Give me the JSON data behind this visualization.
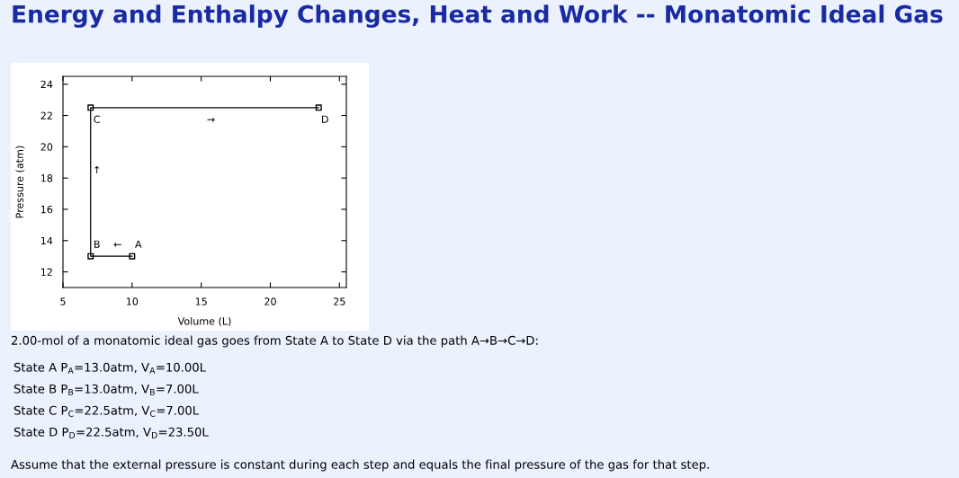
{
  "chart_data": {
    "type": "line",
    "title": "Energy and Enthalpy Changes, Heat and Work -- Monatomic Ideal Gas",
    "xlabel": "Volume (L)",
    "ylabel": "Pressure (atm)",
    "series": [
      {
        "color": "#000000",
        "x": [
          10,
          7,
          7,
          23.5
        ],
        "values": [
          13,
          13,
          22.5,
          22.5
        ]
      }
    ],
    "marker": "square",
    "line_style": "solid",
    "grid": false,
    "legend": false,
    "xlim": [
      5,
      25.5
    ],
    "ylim": [
      11,
      24.5
    ],
    "xticks": [
      5,
      10,
      15,
      20,
      25
    ],
    "yticks": [
      12,
      14,
      16,
      18,
      20,
      22,
      24
    ],
    "annotations": [
      {
        "text": "A",
        "x": 10,
        "y": 13
      },
      {
        "text": "B",
        "x": 7,
        "y": 13
      },
      {
        "text": "C",
        "x": 7,
        "y": 22.5
      },
      {
        "text": "D",
        "x": 23.5,
        "y": 22.5
      },
      {
        "text": "←",
        "x": 8.5,
        "y": 13
      },
      {
        "text": "↑",
        "x": 7,
        "y": 17.75
      },
      {
        "text": "→",
        "x": 15.25,
        "y": 22.5
      },
      "2.00-mol of a monatomic ideal gas goes from State A to State D via the path A→B→C→D:",
      "State A P$_{A}$=13.0atm, V$_{A}$=10.00L",
      "State B P$_{B}$=13.0atm, V$_{B}$=7.00L",
      "State C P$_{C}$=22.5atm, V$_{C}$=7.00L",
      "State D P$_{D}$=22.5atm, V$_{D}$=23.50L",
      "Assume that the external pressure is constant during each step and equals the final pressure of the gas for that step."
    ]
  }
}
